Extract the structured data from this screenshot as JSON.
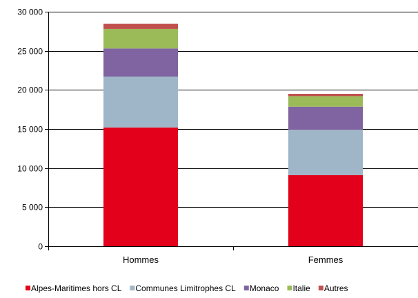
{
  "chart_data": {
    "type": "bar",
    "stacked": true,
    "categories": [
      "Hommes",
      "Femmes"
    ],
    "series": [
      {
        "name": "Alpes-Maritimes hors CL",
        "color": "#E3001B",
        "values": [
          15200,
          9100
        ]
      },
      {
        "name": "Communes Limitrophes CL",
        "color": "#9FB6C8",
        "values": [
          6500,
          5800
        ]
      },
      {
        "name": "Monaco",
        "color": "#8064A2",
        "values": [
          3600,
          2950
        ]
      },
      {
        "name": "Italie",
        "color": "#9BBB59",
        "values": [
          2500,
          1350
        ]
      },
      {
        "name": "Autres",
        "color": "#C0504D",
        "values": [
          650,
          300
        ]
      }
    ],
    "ylim": [
      0,
      30000
    ],
    "yticks": [
      0,
      5000,
      10000,
      15000,
      20000,
      25000,
      30000
    ],
    "ytick_labels": [
      "0",
      "5 000",
      "10 000",
      "15 000",
      "20 000",
      "25 000",
      "30 000"
    ],
    "grid": "horizontal",
    "legend_position": "bottom",
    "title": "",
    "xlabel": "",
    "ylabel": ""
  }
}
